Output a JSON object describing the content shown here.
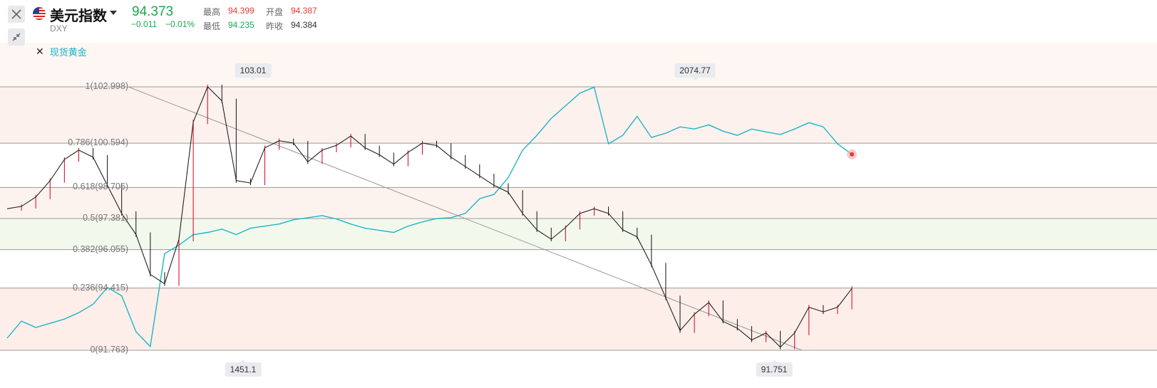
{
  "header": {
    "title": "美元指数",
    "symbol": "DXY",
    "price": "94.373",
    "change": "−0.011",
    "change_pct": "−0.01%",
    "high_label": "最高",
    "high": "94.399",
    "open_label": "开盘",
    "open": "94.387",
    "low_label": "最低",
    "low": "94.235",
    "prev_close_label": "昨收",
    "prev_close": "94.384"
  },
  "overlay": {
    "remove_glyph": "✕",
    "label": "现货黄金"
  },
  "fib_levels": [
    {
      "label": "1(102.998)",
      "ratio": 1
    },
    {
      "label": "0.786(100.594)",
      "ratio": 0.786
    },
    {
      "label": "0.618(98.706)",
      "ratio": 0.618
    },
    {
      "label": "0.5(97.381)",
      "ratio": 0.5
    },
    {
      "label": "0.382(96.055)",
      "ratio": 0.382
    },
    {
      "label": "0.236(94.415)",
      "ratio": 0.236
    },
    {
      "label": "0(91.763)",
      "ratio": 0
    }
  ],
  "callouts": {
    "dxy_high": "103.01",
    "dxy_low": "91.751",
    "gold_high": "2074.77",
    "gold_low": "1451.1"
  },
  "colors": {
    "up": "#e23b35",
    "down": "#1da84b",
    "gold_line": "#1fb5c6",
    "dxy_candle_up": "#d0021b",
    "dxy_candle_down": "#111111"
  },
  "chart_data": {
    "type": "line",
    "series": [
      {
        "name": "DXY",
        "values": [
          97.8,
          97.9,
          98.3,
          99.0,
          99.9,
          100.3,
          100.0,
          98.8,
          97.6,
          96.7,
          95.0,
          94.6,
          96.5,
          101.5,
          103.0,
          102.4,
          99.0,
          98.9,
          100.4,
          100.7,
          100.6,
          99.8,
          100.3,
          100.5,
          100.9,
          100.4,
          100.1,
          99.7,
          100.2,
          100.6,
          100.5,
          100.0,
          99.6,
          99.2,
          98.8,
          98.5,
          97.6,
          96.9,
          96.5,
          97.0,
          97.6,
          97.8,
          97.6,
          96.9,
          96.6,
          95.4,
          94.0,
          92.6,
          93.3,
          93.8,
          93.0,
          92.7,
          92.2,
          92.5,
          91.9,
          92.5,
          93.6,
          93.4,
          93.6,
          94.4
        ]
      },
      {
        "name": "现货黄金",
        "values": [
          1480,
          1520,
          1505,
          1515,
          1525,
          1540,
          1560,
          1600,
          1580,
          1495,
          1460,
          1680,
          1700,
          1725,
          1730,
          1738,
          1725,
          1740,
          1745,
          1750,
          1760,
          1765,
          1770,
          1762,
          1750,
          1740,
          1735,
          1730,
          1745,
          1755,
          1763,
          1765,
          1775,
          1810,
          1820,
          1860,
          1925,
          1960,
          2000,
          2030,
          2060,
          2074,
          1940,
          1960,
          2005,
          1955,
          1965,
          1980,
          1975,
          1985,
          1970,
          1960,
          1975,
          1968,
          1962,
          1975,
          1990,
          1980,
          1940,
          1915
        ]
      }
    ]
  }
}
